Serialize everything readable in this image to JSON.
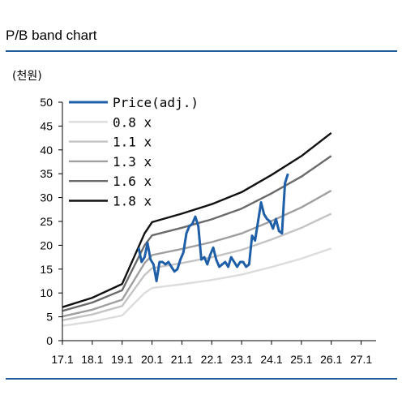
{
  "title": "P/B band chart",
  "unit": "(천원)",
  "chart_data": {
    "type": "line",
    "title": "P/B band chart",
    "ylabel": "(천원)",
    "xlabel": "",
    "ylim": [
      0,
      50
    ],
    "yticks": [
      0,
      5,
      10,
      15,
      20,
      25,
      30,
      35,
      40,
      45,
      50
    ],
    "xlim": [
      2017,
      2027.5
    ],
    "xticks": [
      "17.1",
      "18.1",
      "19.1",
      "20.1",
      "21.1",
      "22.1",
      "23.1",
      "24.1",
      "25.1",
      "26.1",
      "27.1"
    ],
    "legend_position": "top-left",
    "bps": {
      "x": [
        2017.0,
        2018.0,
        2019.0,
        2019.75,
        2020.0,
        2021.0,
        2022.0,
        2023.0,
        2024.0,
        2025.0,
        2026.0
      ],
      "values": [
        3.9,
        5.0,
        6.6,
        12.5,
        13.8,
        14.8,
        15.9,
        17.3,
        19.3,
        21.5,
        24.2
      ]
    },
    "series": [
      {
        "name": "Price(adj.)",
        "color": "#1f5fa8",
        "x": [
          2019.55,
          2019.65,
          2019.75,
          2019.85,
          2019.95,
          2020.05,
          2020.15,
          2020.25,
          2020.35,
          2020.45,
          2020.55,
          2020.65,
          2020.75,
          2020.85,
          2020.95,
          2021.05,
          2021.15,
          2021.25,
          2021.35,
          2021.45,
          2021.55,
          2021.65,
          2021.75,
          2021.85,
          2021.95,
          2022.05,
          2022.15,
          2022.25,
          2022.35,
          2022.45,
          2022.55,
          2022.65,
          2022.75,
          2022.85,
          2022.95,
          2023.05,
          2023.15,
          2023.25,
          2023.35,
          2023.45,
          2023.55,
          2023.65,
          2023.75,
          2023.85,
          2023.95,
          2024.05,
          2024.15,
          2024.25,
          2024.35,
          2024.45,
          2024.55
        ],
        "values": [
          19.5,
          16.5,
          17.5,
          20.5,
          17.0,
          16.0,
          12.5,
          16.5,
          16.5,
          16.0,
          16.5,
          15.5,
          14.5,
          15.0,
          17.0,
          18.5,
          22.5,
          24.0,
          24.5,
          26.0,
          24.0,
          17.0,
          17.5,
          16.0,
          18.0,
          19.5,
          17.0,
          15.5,
          16.0,
          16.5,
          15.5,
          17.5,
          16.5,
          15.5,
          16.5,
          16.5,
          15.5,
          16.0,
          22.0,
          21.0,
          25.0,
          29.0,
          26.5,
          25.5,
          25.0,
          23.5,
          25.5,
          23.0,
          22.5,
          33.0,
          35.0
        ]
      },
      {
        "name": "0.8 x",
        "color": "#dcdcdc",
        "multiple": 0.8
      },
      {
        "name": "1.1 x",
        "color": "#c4c4c4",
        "multiple": 1.1
      },
      {
        "name": "1.3 x",
        "color": "#9f9f9f",
        "multiple": 1.3
      },
      {
        "name": "1.6 x",
        "color": "#6a6a6a",
        "multiple": 1.6
      },
      {
        "name": "1.8 x",
        "color": "#111111",
        "multiple": 1.8
      }
    ]
  }
}
